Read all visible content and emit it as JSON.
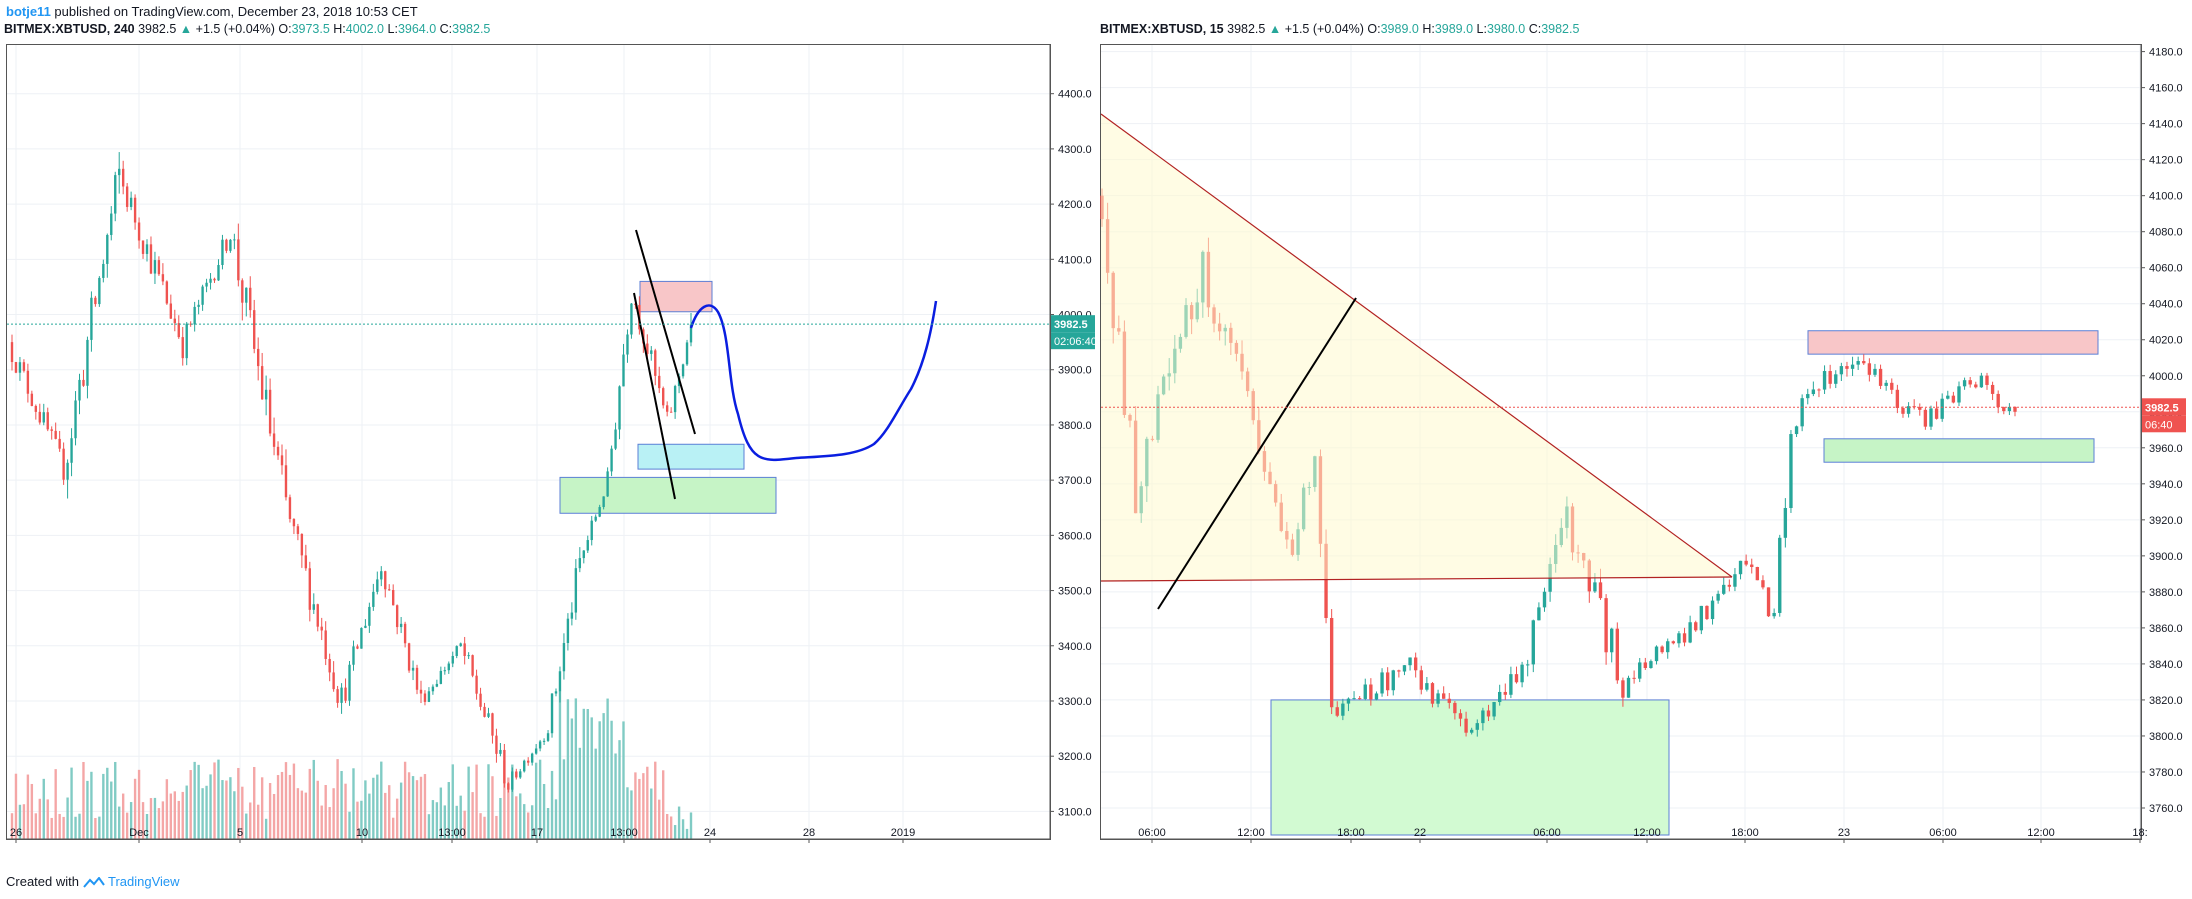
{
  "publish_line": {
    "author": "botje11",
    "text": " published on TradingView.com, December 23, 2018 10:53 CET"
  },
  "footer": {
    "created": "Created with",
    "brand": "TradingView"
  },
  "colors": {
    "up": "#26a69a",
    "down": "#ef5350",
    "volume_up": "#80cbc4",
    "volume_down": "#f4a6a6",
    "grid": "#eef1f5",
    "border": "#555555"
  },
  "charts": [
    {
      "header": {
        "symbol": "BITMEX:XBTUSD, 240",
        "last": "3982.5",
        "arrow": "▲",
        "change": "+1.5 (+0.04%)",
        "o_label": "O:",
        "o": "3973.5",
        "h_label": "H:",
        "h": "4002.0",
        "l_label": "L:",
        "l": "3964.0",
        "c_label": "C:",
        "c": "3982.5"
      },
      "price_tag": "3982.5",
      "timer_tag": "02:06:40"
    },
    {
      "header": {
        "symbol": "BITMEX:XBTUSD, 15",
        "last": "3982.5",
        "arrow": "▲",
        "change": "+1.5 (+0.04%)",
        "o_label": "O:",
        "o": "3989.0",
        "h_label": "H:",
        "h": "3989.0",
        "l_label": "L:",
        "l": "3980.0",
        "c_label": "C:",
        "c": "3982.5"
      },
      "price_tag": "3982.5",
      "timer_tag": "06:40"
    }
  ],
  "chart_data": [
    {
      "type": "candlestick",
      "title": "BITMEX:XBTUSD, 240",
      "ylim": [
        3050,
        4490
      ],
      "y_ticks": [
        3100,
        3200,
        3300,
        3400,
        3500,
        3600,
        3700,
        3800,
        3900,
        4000,
        4100,
        4200,
        4300,
        4400
      ],
      "y_tick_labels": [
        "3100.0",
        "3200.0",
        "3300.0",
        "3400.0",
        "3500.0",
        "3600.0",
        "3700.0",
        "3800.0",
        "3900.0",
        "4000.0",
        "4100.0",
        "4200.0",
        "4300.0",
        "4400.0"
      ],
      "x_tick_labels": [
        "26",
        "Dec",
        "5",
        "10",
        "13:00",
        "17",
        "13:00",
        "24",
        "28",
        "2019"
      ],
      "last_price": 3982.5,
      "segments": [
        [
          3950,
          3720,
          14
        ],
        [
          3720,
          4250,
          14
        ],
        [
          4250,
          3950,
          16
        ],
        [
          3950,
          4150,
          12
        ],
        [
          4150,
          3650,
          14
        ],
        [
          3650,
          3300,
          14
        ],
        [
          3300,
          3550,
          10
        ],
        [
          3550,
          3300,
          10
        ],
        [
          3300,
          3400,
          10
        ],
        [
          3400,
          3150,
          12
        ],
        [
          3150,
          3250,
          10
        ],
        [
          3250,
          3550,
          8
        ],
        [
          3550,
          3700,
          7
        ],
        [
          3700,
          4050,
          6
        ],
        [
          4050,
          3800,
          9
        ],
        [
          3800,
          3982,
          6
        ]
      ],
      "zones": [
        {
          "label": "supply",
          "y1": 4005,
          "y2": 4060,
          "color": "#f8c6c8"
        },
        {
          "label": "cyan",
          "y1": 3720,
          "y2": 3765,
          "color": "#b9f1f5"
        },
        {
          "label": "demand",
          "y1": 3640,
          "y2": 3705,
          "color": "#c6f4c6"
        }
      ]
    },
    {
      "type": "candlestick",
      "title": "BITMEX:XBTUSD, 15",
      "ylim": [
        3745,
        4182
      ],
      "y_ticks": [
        3760,
        3780,
        3800,
        3820,
        3840,
        3860,
        3880,
        3900,
        3920,
        3940,
        3960,
        3980,
        4000,
        4020,
        4040,
        4060,
        4080,
        4100,
        4120,
        4140,
        4160,
        4180
      ],
      "y_tick_labels": [
        "3760.0",
        "3780.0",
        "3800.0",
        "3820.0",
        "3840.0",
        "3860.0",
        "3880.0",
        "3900.0",
        "3920.0",
        "3940.0",
        "3960.0",
        "3980.0",
        "4000.0",
        "4020.0",
        "4040.0",
        "4060.0",
        "4080.0",
        "4100.0",
        "4120.0",
        "4140.0",
        "4160.0",
        "4180.0"
      ],
      "x_tick_labels": [
        "06:00",
        "12:00",
        "18:00",
        "22",
        "06:00",
        "12:00",
        "18:00",
        "23",
        "06:00",
        "12:00",
        "18:"
      ],
      "last_price": 3982.5,
      "segments": [
        [
          4100,
          3940,
          7
        ],
        [
          3940,
          4060,
          12
        ],
        [
          4060,
          3960,
          10
        ],
        [
          3960,
          3900,
          6
        ],
        [
          3900,
          3960,
          4
        ],
        [
          3960,
          3810,
          3
        ],
        [
          3810,
          3840,
          14
        ],
        [
          3840,
          3800,
          10
        ],
        [
          3800,
          3840,
          10
        ],
        [
          3840,
          3920,
          8
        ],
        [
          3920,
          3830,
          10
        ],
        [
          3830,
          3860,
          12
        ],
        [
          3860,
          3895,
          10
        ],
        [
          3895,
          3865,
          5
        ],
        [
          3865,
          3975,
          3
        ],
        [
          3975,
          4010,
          10
        ],
        [
          4010,
          3975,
          14
        ],
        [
          3975,
          4000,
          8
        ],
        [
          4000,
          3980,
          8
        ]
      ],
      "zones": [
        {
          "label": "supply",
          "y1": 4012,
          "y2": 4025,
          "color": "#f8c6c8"
        },
        {
          "label": "demand",
          "y1": 3952,
          "y2": 3965,
          "color": "#c6f4c6"
        },
        {
          "label": "support-box",
          "y1": 3745,
          "y2": 3820,
          "color": "#d2fad2"
        }
      ]
    }
  ]
}
